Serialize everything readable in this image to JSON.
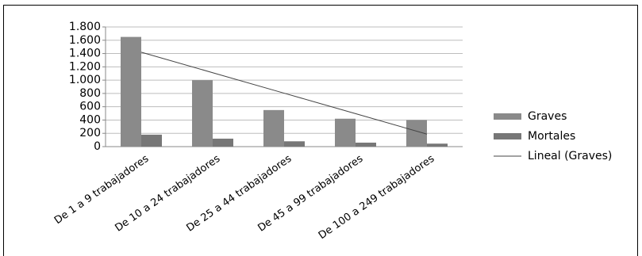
{
  "chart_data": {
    "type": "bar",
    "categories": [
      "De 1 a 9 trabajadores",
      "De 10 a 24 trabajadores",
      "De 25 a 44 trabajadores",
      "De 45 a 99 trabajadores",
      "De 100 a 249 trabajadores"
    ],
    "series": [
      {
        "name": "Graves",
        "type": "bar",
        "color": "#8a8a8a",
        "values": [
          1650,
          1000,
          550,
          420,
          400
        ]
      },
      {
        "name": "Mortales",
        "type": "bar",
        "color": "#777777",
        "values": [
          180,
          120,
          80,
          60,
          45
        ]
      },
      {
        "name": "Lineal (Graves)",
        "type": "line",
        "color": "#444444",
        "values": [
          1420,
          1112,
          804,
          496,
          188
        ]
      }
    ],
    "ylim": [
      0,
      1800
    ],
    "yticks": [
      0,
      200,
      400,
      600,
      800,
      {
        "value": 1000,
        "label": "1.000"
      },
      {
        "value": 1200,
        "label": "1.200"
      },
      {
        "value": 1400,
        "label": "1.400"
      },
      {
        "value": 1600,
        "label": "1.600"
      },
      {
        "value": 1800,
        "label": "1.800"
      }
    ],
    "grid": true,
    "legend": "right"
  }
}
